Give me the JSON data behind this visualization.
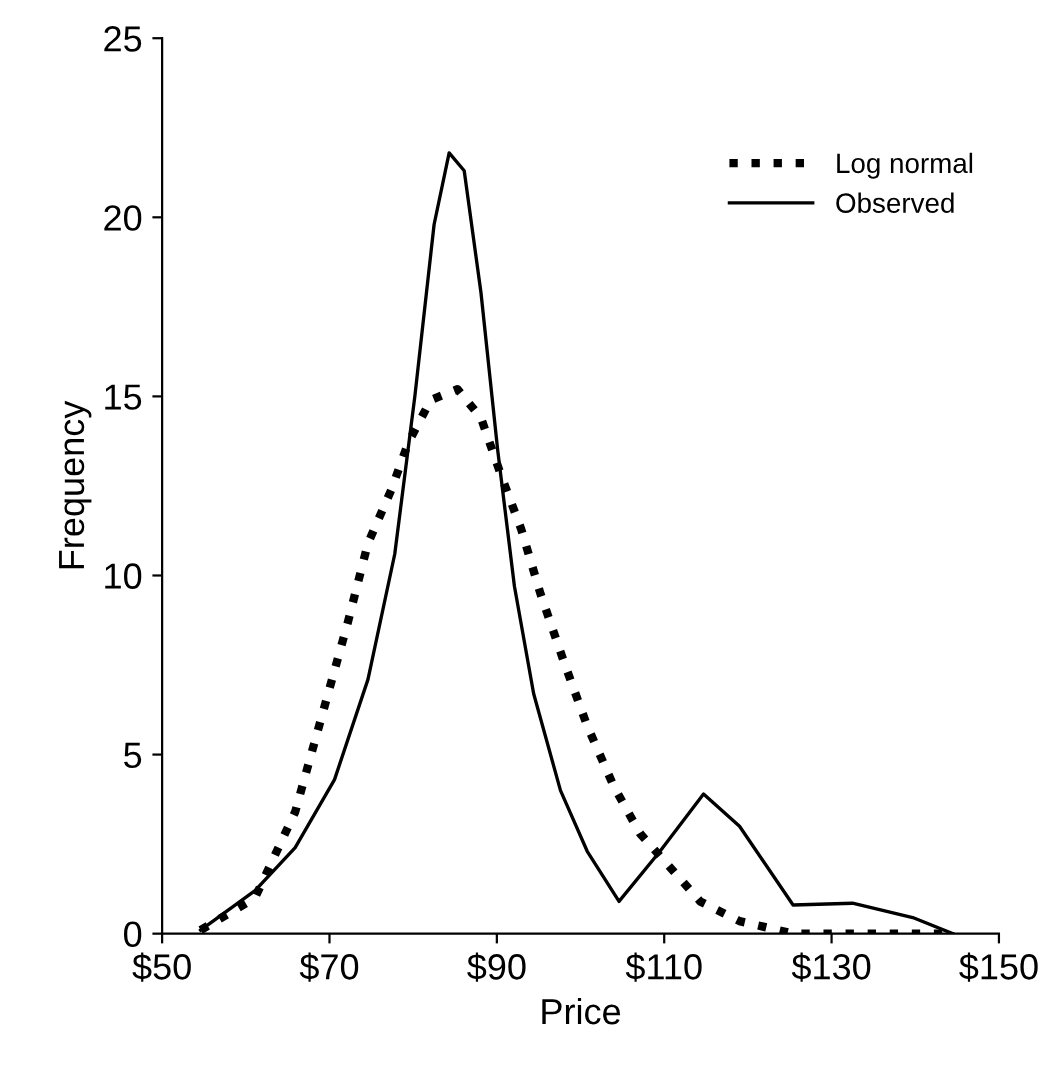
{
  "chart_data": {
    "type": "line",
    "xlabel": "Price",
    "ylabel": "Frequency",
    "xlim": [
      50,
      150
    ],
    "xticks": [
      {
        "value": 50,
        "label": "$50"
      },
      {
        "value": 70,
        "label": "$70"
      },
      {
        "value": 90,
        "label": "$90"
      },
      {
        "value": 110,
        "label": "$110"
      },
      {
        "value": 130,
        "label": "$130"
      },
      {
        "value": 150,
        "label": "$150"
      }
    ],
    "ylim": [
      0,
      25
    ],
    "yticks": [
      0,
      5,
      10,
      15,
      20,
      25
    ],
    "grid": false,
    "legend": "top right",
    "marker": "none",
    "series": [
      {
        "name": "Log normal",
        "color": "#000000",
        "line_style": "dotted",
        "x": [
          54.6,
          61.1,
          65.9,
          69,
          72.2,
          74.6,
          77.4,
          79.4,
          82.1,
          85.3,
          88.1,
          90.5,
          92.9,
          95.2,
          98,
          100.8,
          104,
          107.1,
          114.3,
          119,
          125.4,
          144.5
        ],
        "values": [
          0.1,
          1.0,
          3.4,
          6.0,
          8.7,
          10.9,
          12.4,
          13.7,
          14.9,
          15.2,
          14.4,
          12.8,
          11.3,
          9.5,
          7.6,
          5.8,
          4.1,
          2.8,
          0.9,
          0.35,
          0,
          0
        ]
      },
      {
        "name": "Observed",
        "color": "#000000",
        "line_style": "solid",
        "x": [
          54.6,
          61.1,
          65.9,
          70.6,
          74.6,
          77.8,
          80.2,
          82.5,
          84.3,
          86.1,
          88.1,
          90.1,
          92.1,
          94.4,
          97.6,
          100.8,
          104.6,
          109.5,
          114.7,
          119,
          125.4,
          132.5,
          139.7,
          144.5
        ],
        "values": [
          0.1,
          1.2,
          2.4,
          4.3,
          7.1,
          10.6,
          15,
          19.8,
          21.8,
          21.3,
          17.9,
          13.5,
          9.7,
          6.7,
          4.0,
          2.3,
          0.9,
          2.3,
          3.9,
          3.0,
          0.8,
          0.85,
          0.45,
          0
        ]
      }
    ]
  }
}
